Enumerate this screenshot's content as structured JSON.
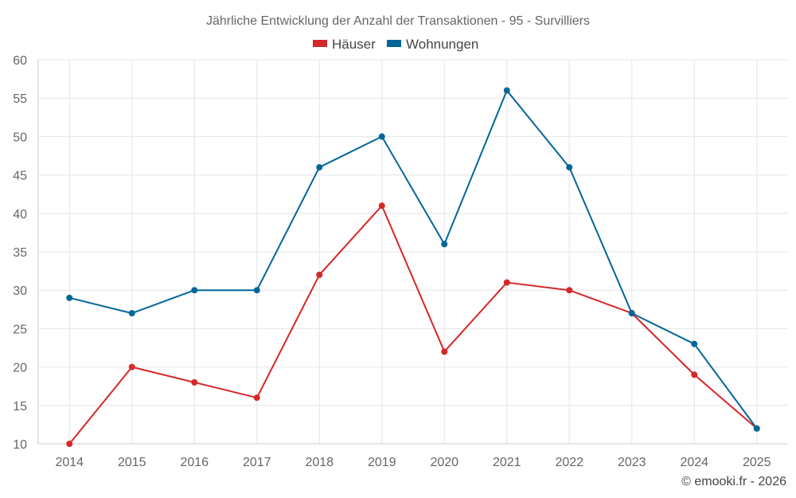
{
  "chart_data": {
    "type": "line",
    "title": "Jährliche Entwicklung der Anzahl der Transaktionen - 95 - Survilliers",
    "categories": [
      "2014",
      "2015",
      "2016",
      "2017",
      "2018",
      "2019",
      "2020",
      "2021",
      "2022",
      "2023",
      "2024",
      "2025"
    ],
    "series": [
      {
        "name": "Häuser",
        "color": "#d62728",
        "values": [
          10,
          20,
          18,
          16,
          32,
          41,
          22,
          31,
          30,
          27,
          19,
          12
        ]
      },
      {
        "name": "Wohnungen",
        "color": "#006699",
        "values": [
          29,
          27,
          30,
          30,
          46,
          50,
          36,
          56,
          46,
          27,
          23,
          12
        ]
      }
    ],
    "ylim": [
      10,
      60
    ],
    "yticks": [
      "10",
      "15",
      "20",
      "25",
      "30",
      "35",
      "40",
      "45",
      "50",
      "55",
      "60"
    ],
    "grid": true,
    "legend_position": "top-center",
    "xlabel": "",
    "ylabel": ""
  },
  "footer": {
    "credit": "© emooki.fr - 2026"
  }
}
